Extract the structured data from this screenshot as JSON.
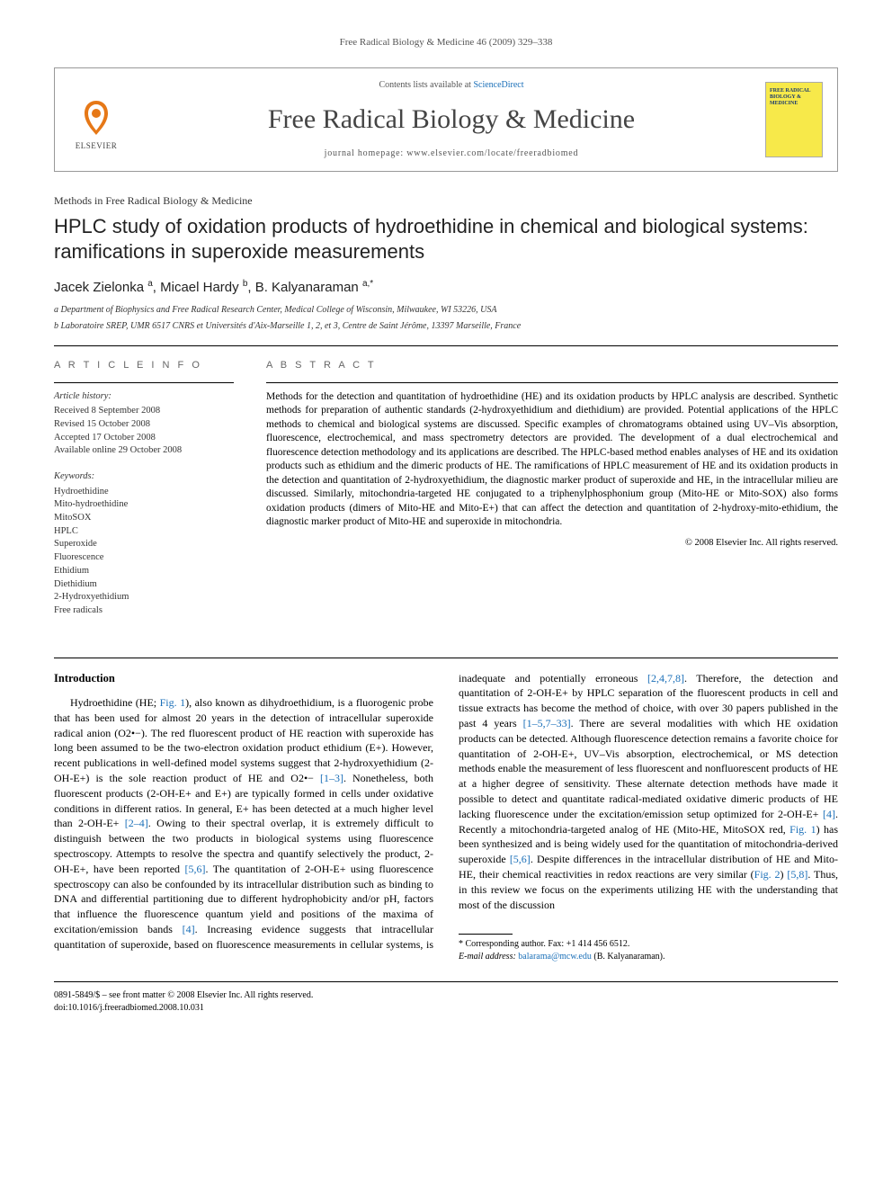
{
  "running_header": "Free Radical Biology & Medicine 46 (2009) 329–338",
  "masthead": {
    "contents_prefix": "Contents lists available at ",
    "contents_link": "ScienceDirect",
    "journal_title": "Free Radical Biology & Medicine",
    "homepage_label": "journal homepage: www.elsevier.com/locate/freeradbiomed",
    "publisher_name": "ELSEVIER",
    "cover_text": "FREE RADICAL BIOLOGY & MEDICINE"
  },
  "section_tag": "Methods in Free Radical Biology & Medicine",
  "title": "HPLC study of oxidation products of hydroethidine in chemical and biological systems: ramifications in superoxide measurements",
  "authors_html": "Jacek Zielonka <sup>a</sup>, Micael Hardy <sup>b</sup>, B. Kalyanaraman <sup>a,*</sup>",
  "affiliations": [
    "a Department of Biophysics and Free Radical Research Center, Medical College of Wisconsin, Milwaukee, WI 53226, USA",
    "b Laboratoire SREP, UMR 6517 CNRS et Universités d'Aix-Marseille 1, 2, et 3, Centre de Saint Jérôme, 13397 Marseille, France"
  ],
  "article_info": {
    "header": "A R T I C L E   I N F O",
    "history_label": "Article history:",
    "history": [
      "Received 8 September 2008",
      "Revised 15 October 2008",
      "Accepted 17 October 2008",
      "Available online 29 October 2008"
    ],
    "keywords_label": "Keywords:",
    "keywords": [
      "Hydroethidine",
      "Mito-hydroethidine",
      "MitoSOX",
      "HPLC",
      "Superoxide",
      "Fluorescence",
      "Ethidium",
      "Diethidium",
      "2-Hydroxyethidium",
      "Free radicals"
    ]
  },
  "abstract": {
    "header": "A B S T R A C T",
    "text": "Methods for the detection and quantitation of hydroethidine (HE) and its oxidation products by HPLC analysis are described. Synthetic methods for preparation of authentic standards (2-hydroxyethidium and diethidium) are provided. Potential applications of the HPLC methods to chemical and biological systems are discussed. Specific examples of chromatograms obtained using UV–Vis absorption, fluorescence, electrochemical, and mass spectrometry detectors are provided. The development of a dual electrochemical and fluorescence detection methodology and its applications are described. The HPLC-based method enables analyses of HE and its oxidation products such as ethidium and the dimeric products of HE. The ramifications of HPLC measurement of HE and its oxidation products in the detection and quantitation of 2-hydroxyethidium, the diagnostic marker product of superoxide and HE, in the intracellular milieu are discussed. Similarly, mitochondria-targeted HE conjugated to a triphenylphosphonium group (Mito-HE or Mito-SOX) also forms oxidation products (dimers of Mito-HE and Mito-E+) that can affect the detection and quantitation of 2-hydroxy-mito-ethidium, the diagnostic marker product of Mito-HE and superoxide in mitochondria.",
    "copyright": "© 2008 Elsevier Inc. All rights reserved."
  },
  "body": {
    "heading": "Introduction",
    "p1_pre": "Hydroethidine (HE; ",
    "p1_fig1": "Fig. 1",
    "p1_post": "), also known as dihydroethidium, is a fluorogenic probe that has been used for almost 20 years in the detection of intracellular superoxide radical anion (O2•−). The red fluorescent product of HE reaction with superoxide has long been assumed to be the two-electron oxidation product ethidium (E+). However, recent publications in well-defined model systems suggest that 2-hydroxyethidium (2-OH-E+) is the sole reaction product of HE and O2•− ",
    "p1_ref1": "[1–3]",
    "p1_mid": ". Nonetheless, both fluorescent products (2-OH-E+ and E+) are typically formed in cells under oxidative conditions in different ratios. In general, E+ has been detected at a much higher level than 2-OH-E+ ",
    "p1_ref2": "[2–4]",
    "p1_mid2": ". Owing to their spectral overlap, it is extremely difficult to distinguish between the two products in biological systems using fluorescence spectroscopy. Attempts to resolve the spectra and quantify selectively the product, 2-OH-E+, have been reported ",
    "p1_ref3": "[5,6]",
    "p1_end": ". The quantitation of 2-OH-E+ using fluorescence spectroscopy can also be confounded by its intracellular distribution such as binding to DNA and differential partitioning due to different hydrophobicity and/or",
    "p2_pre": "pH, factors that influence the fluorescence quantum yield and positions of the maxima of excitation/emission bands ",
    "p2_ref1": "[4]",
    "p2_a": ". Increasing evidence suggests that intracellular quantitation of superoxide, based on fluorescence measurements in cellular systems, is inadequate and potentially erroneous ",
    "p2_ref2": "[2,4,7,8]",
    "p2_b": ". Therefore, the detection and quantitation of 2-OH-E+ by HPLC separation of the fluorescent products in cell and tissue extracts has become the method of choice, with over 30 papers published in the past 4 years ",
    "p2_ref3": "[1–5,7–33]",
    "p2_c": ". There are several modalities with which HE oxidation products can be detected. Although fluorescence detection remains a favorite choice for quantitation of 2-OH-E+, UV–Vis absorption, electrochemical, or MS detection methods enable the measurement of less fluorescent and nonfluorescent products of HE at a higher degree of sensitivity. These alternate detection methods have made it possible to detect and quantitate radical-mediated oxidative dimeric products of HE lacking fluorescence under the excitation/emission setup optimized for 2-OH-E+ ",
    "p2_ref4": "[4]",
    "p2_d": ". Recently a mitochondria-targeted analog of HE (Mito-HE, MitoSOX red, ",
    "p2_fig1": "Fig. 1",
    "p2_e": ") has been synthesized and is being widely used for the quantitation of mitochondria-derived superoxide ",
    "p2_ref5": "[5,6]",
    "p2_f": ". Despite differences in the intracellular distribution of HE and Mito-HE, their chemical reactivities in redox reactions are very similar (",
    "p2_fig2": "Fig. 2",
    "p2_g": ") ",
    "p2_ref6": "[5,8]",
    "p2_h": ". Thus, in this review we focus on the experiments utilizing HE with the understanding that most of the discussion"
  },
  "corr": {
    "line1": "* Corresponding author. Fax: +1 414 456 6512.",
    "line2_label": "E-mail address: ",
    "line2_email": "balarama@mcw.edu",
    "line2_post": " (B. Kalyanaraman)."
  },
  "footer": {
    "left1": "0891-5849/$ – see front matter © 2008 Elsevier Inc. All rights reserved.",
    "left2": "doi:10.1016/j.freeradbiomed.2008.10.031"
  },
  "colors": {
    "link": "#1a6fb8",
    "text": "#000000",
    "muted": "#555555",
    "cover_bg": "#f7e94a",
    "cover_text": "#1a3a6f"
  }
}
